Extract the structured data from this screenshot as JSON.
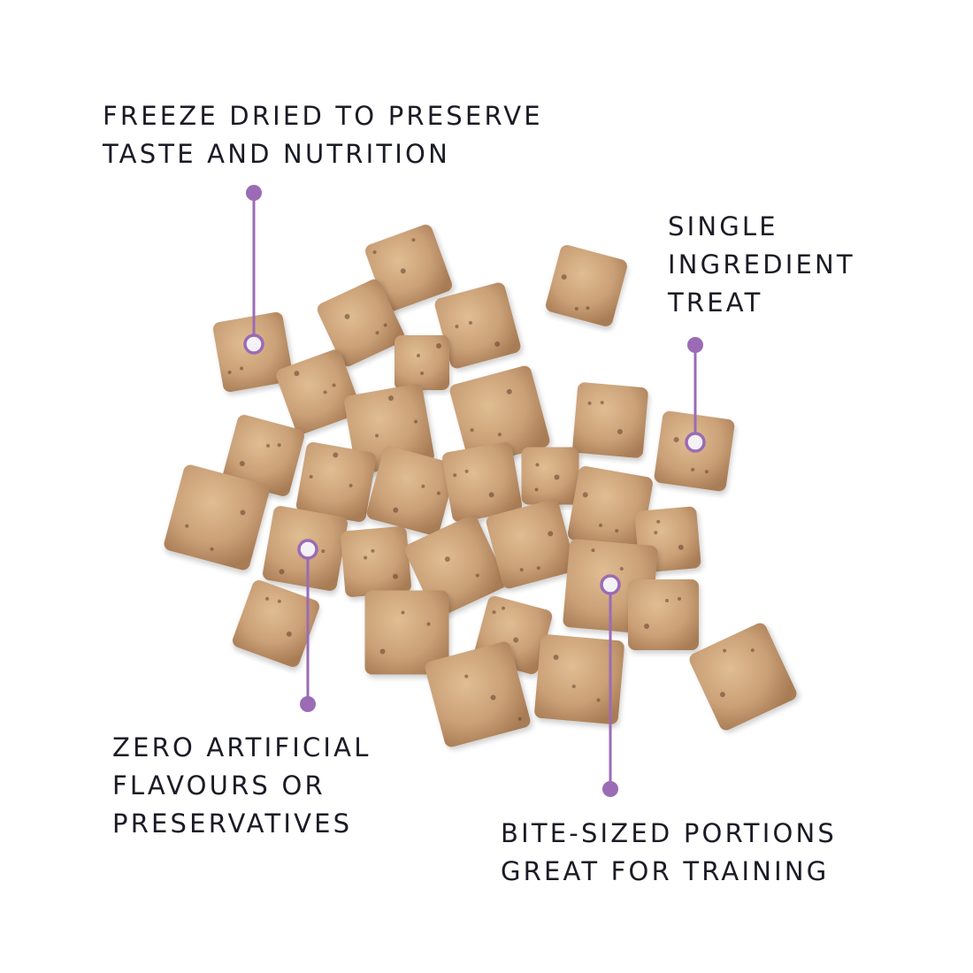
{
  "accent_color": "#9b6bb5",
  "product_image": {
    "subject": "freeze-dried treat cubes"
  },
  "callouts": [
    {
      "lines": [
        "FREEZE DRIED TO PRESERVE",
        "TASTE AND NUTRITION"
      ]
    },
    {
      "lines": [
        "SINGLE",
        "INGREDIENT",
        "TREAT"
      ]
    },
    {
      "lines": [
        "ZERO ARTIFICIAL",
        "FLAVOURS OR",
        "PRESERVATIVES"
      ]
    },
    {
      "lines": [
        "BITE-SIZED PORTIONS",
        "GREAT FOR TRAINING"
      ]
    }
  ]
}
